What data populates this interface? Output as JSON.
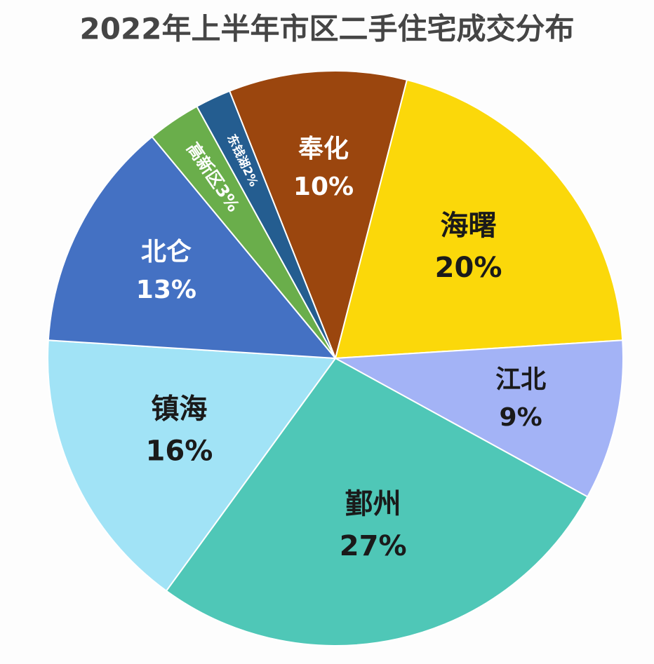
{
  "chart_data": {
    "type": "pie",
    "title": "2022年上半年市区二手住宅成交分布",
    "categories": [
      "奉化",
      "海曙",
      "江北",
      "鄞州",
      "镇海",
      "北仑",
      "高新区",
      "东钱湖"
    ],
    "values": [
      10,
      20,
      9,
      27,
      16,
      13,
      3,
      2
    ],
    "value_labels": [
      "10%",
      "20%",
      "9%",
      "27%",
      "16%",
      "13%",
      "3%",
      "2%"
    ],
    "colors": [
      "#9b460e",
      "#fbd80a",
      "#a3b3f6",
      "#4fc7b7",
      "#a1e3f6",
      "#4471c3",
      "#6aae4b",
      "#245d90"
    ],
    "label_colors": [
      "#ffffff",
      "#1a1a1a",
      "#1a1a1a",
      "#1a1a1a",
      "#1a1a1a",
      "#ffffff",
      "#ffffff",
      "#ffffff"
    ]
  }
}
